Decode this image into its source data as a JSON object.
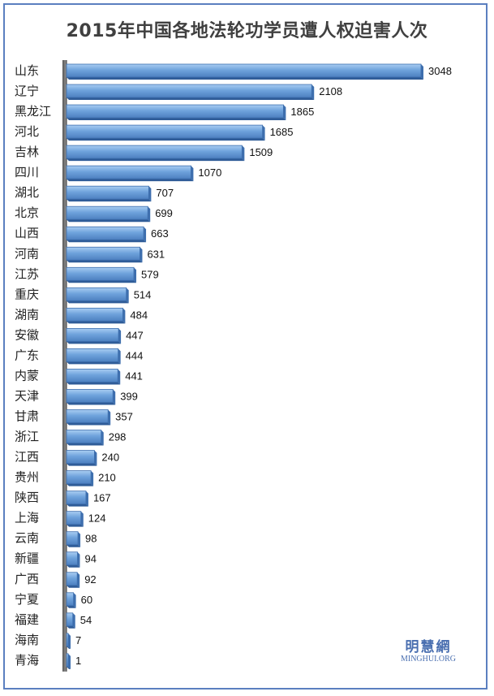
{
  "chart_data": {
    "type": "bar",
    "orientation": "horizontal",
    "title": "2015年中国各地法轮功学员遭人权迫害人次",
    "categories": [
      "山东",
      "辽宁",
      "黑龙江",
      "河北",
      "吉林",
      "四川",
      "湖北",
      "北京",
      "山西",
      "河南",
      "江苏",
      "重庆",
      "湖南",
      "安徽",
      "广东",
      "内蒙",
      "天津",
      "甘肃",
      "浙江",
      "江西",
      "贵州",
      "陕西",
      "上海",
      "云南",
      "新疆",
      "广西",
      "宁夏",
      "福建",
      "海南",
      "青海"
    ],
    "values": [
      3048,
      2108,
      1865,
      1685,
      1509,
      1070,
      707,
      699,
      663,
      631,
      579,
      514,
      484,
      447,
      444,
      441,
      399,
      357,
      298,
      240,
      210,
      167,
      124,
      98,
      94,
      92,
      60,
      54,
      7,
      1
    ],
    "xlim": [
      0,
      3048
    ],
    "grid": false,
    "legend": "none",
    "data_labels": true
  },
  "colors": {
    "bar_fill": "#6fa3dc",
    "bar_dark": "#3e6fae",
    "frame": "#5b7fc0",
    "title": "#404040"
  },
  "watermark": {
    "name_cn": "明慧網",
    "name_en": "MINGHUI.ORG"
  }
}
